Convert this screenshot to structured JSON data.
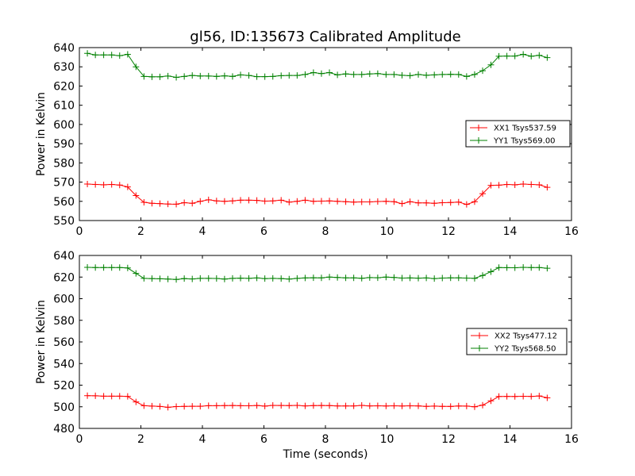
{
  "title": "gl56, ID:135673 Calibrated Amplitude",
  "chart_data": [
    {
      "type": "line",
      "ylabel": "Power in Kelvin",
      "xlabel": "",
      "xlim": [
        0,
        16
      ],
      "ylim": [
        550,
        640
      ],
      "xticks": [
        0,
        2,
        4,
        6,
        8,
        10,
        12,
        14,
        16
      ],
      "yticks": [
        550,
        560,
        570,
        580,
        590,
        600,
        610,
        620,
        630,
        640
      ],
      "legend_position": "center-right",
      "series": [
        {
          "name": "XX1 Tsys537.59",
          "color": "#ff0000",
          "x": [
            0.26,
            0.52,
            0.79,
            1.05,
            1.31,
            1.57,
            1.84,
            2.1,
            2.36,
            2.62,
            2.88,
            3.15,
            3.41,
            3.67,
            3.93,
            4.2,
            4.46,
            4.72,
            4.98,
            5.24,
            5.51,
            5.77,
            6.03,
            6.29,
            6.56,
            6.82,
            7.08,
            7.34,
            7.61,
            7.87,
            8.13,
            8.39,
            8.66,
            8.92,
            9.18,
            9.44,
            9.7,
            9.97,
            10.23,
            10.49,
            10.75,
            11.02,
            11.28,
            11.54,
            11.8,
            12.07,
            12.33,
            12.59,
            12.85,
            13.11,
            13.38,
            13.64,
            13.9,
            14.16,
            14.43,
            14.69,
            14.95,
            15.21
          ],
          "y": [
            569,
            568.8,
            568.6,
            568.8,
            568.5,
            567.5,
            563,
            559.5,
            559,
            558.8,
            558.6,
            558.5,
            559.3,
            559,
            560,
            560.8,
            560.2,
            560,
            560.2,
            560.6,
            560.6,
            560.5,
            560.1,
            560.2,
            560.6,
            559.6,
            560,
            560.6,
            560,
            560.1,
            560.2,
            560,
            559.8,
            559.6,
            559.7,
            559.7,
            559.9,
            560,
            559.8,
            558.8,
            559.8,
            559.2,
            559.2,
            559,
            559.3,
            559.4,
            559.6,
            558.4,
            559.8,
            564,
            568.3,
            568.4,
            568.8,
            568.6,
            569,
            568.8,
            568.6,
            567.3
          ]
        },
        {
          "name": "YY1 Tsys569.00",
          "color": "#008000",
          "x": [
            0.26,
            0.52,
            0.79,
            1.05,
            1.31,
            1.57,
            1.84,
            2.1,
            2.36,
            2.62,
            2.88,
            3.15,
            3.41,
            3.67,
            3.93,
            4.2,
            4.46,
            4.72,
            4.98,
            5.24,
            5.51,
            5.77,
            6.03,
            6.29,
            6.56,
            6.82,
            7.08,
            7.34,
            7.61,
            7.87,
            8.13,
            8.39,
            8.66,
            8.92,
            9.18,
            9.44,
            9.7,
            9.97,
            10.23,
            10.49,
            10.75,
            11.02,
            11.28,
            11.54,
            11.8,
            12.07,
            12.33,
            12.59,
            12.85,
            13.11,
            13.38,
            13.64,
            13.9,
            14.16,
            14.43,
            14.69,
            14.95,
            15.21
          ],
          "y": [
            637,
            636.2,
            636.2,
            636.2,
            635.8,
            636.5,
            630,
            625,
            624.8,
            624.8,
            625.2,
            624.5,
            625,
            625.5,
            625.2,
            625.2,
            625,
            625.3,
            625,
            625.8,
            625.5,
            624.9,
            624.9,
            625,
            625.4,
            625.5,
            625.5,
            626,
            627,
            626.5,
            627,
            625.8,
            626.3,
            626,
            626,
            626.3,
            626.5,
            626,
            626,
            625.6,
            625.4,
            626,
            625.6,
            625.8,
            626,
            626.1,
            626,
            625,
            626,
            628,
            631,
            635.5,
            635.6,
            635.6,
            636.5,
            635.5,
            636,
            634.8
          ]
        }
      ]
    },
    {
      "type": "line",
      "ylabel": "Power in Kelvin",
      "xlabel": "Time (seconds)",
      "xlim": [
        0,
        16
      ],
      "ylim": [
        480,
        640
      ],
      "xticks": [
        0,
        2,
        4,
        6,
        8,
        10,
        12,
        14,
        16
      ],
      "yticks": [
        480,
        500,
        520,
        540,
        560,
        580,
        600,
        620,
        640
      ],
      "legend_position": "center-right",
      "series": [
        {
          "name": "XX2 Tsys477.12",
          "color": "#ff0000",
          "x": [
            0.26,
            0.52,
            0.79,
            1.05,
            1.31,
            1.57,
            1.84,
            2.1,
            2.36,
            2.62,
            2.88,
            3.15,
            3.41,
            3.67,
            3.93,
            4.2,
            4.46,
            4.72,
            4.98,
            5.24,
            5.51,
            5.77,
            6.03,
            6.29,
            6.56,
            6.82,
            7.08,
            7.34,
            7.61,
            7.87,
            8.13,
            8.39,
            8.66,
            8.92,
            9.18,
            9.44,
            9.7,
            9.97,
            10.23,
            10.49,
            10.75,
            11.02,
            11.28,
            11.54,
            11.8,
            12.07,
            12.33,
            12.59,
            12.85,
            13.11,
            13.38,
            13.64,
            13.9,
            14.16,
            14.43,
            14.69,
            14.95,
            15.21
          ],
          "y": [
            510.3,
            510.2,
            509.8,
            509.8,
            509.8,
            509.6,
            504.5,
            501,
            500.6,
            500.3,
            499.5,
            500.2,
            500.4,
            500.5,
            500.5,
            501,
            501,
            501.1,
            501.2,
            501,
            500.9,
            501.2,
            500.6,
            501.3,
            501.2,
            501.1,
            501.3,
            500.8,
            501.1,
            501.2,
            501.1,
            500.8,
            500.8,
            500.8,
            501.3,
            500.8,
            500.9,
            500.7,
            500.9,
            500.7,
            500.9,
            500.8,
            500.4,
            500.6,
            500.4,
            500.3,
            500.7,
            500.6,
            500,
            501.5,
            505.5,
            509.5,
            509.6,
            509.5,
            509.7,
            509.6,
            510,
            508.3
          ]
        },
        {
          "name": "YY2 Tsys568.50",
          "color": "#008000",
          "x": [
            0.26,
            0.52,
            0.79,
            1.05,
            1.31,
            1.57,
            1.84,
            2.1,
            2.36,
            2.62,
            2.88,
            3.15,
            3.41,
            3.67,
            3.93,
            4.2,
            4.46,
            4.72,
            4.98,
            5.24,
            5.51,
            5.77,
            6.03,
            6.29,
            6.56,
            6.82,
            7.08,
            7.34,
            7.61,
            7.87,
            8.13,
            8.39,
            8.66,
            8.92,
            9.18,
            9.44,
            9.7,
            9.97,
            10.23,
            10.49,
            10.75,
            11.02,
            11.28,
            11.54,
            11.8,
            12.07,
            12.33,
            12.59,
            12.85,
            13.11,
            13.38,
            13.64,
            13.9,
            14.16,
            14.43,
            14.69,
            14.95,
            15.21
          ],
          "y": [
            629,
            628.8,
            628.8,
            628.8,
            628.8,
            628.4,
            623.4,
            618.8,
            618.6,
            618.4,
            618.2,
            617.8,
            618.6,
            618.3,
            618.8,
            618.8,
            618.7,
            618.2,
            618.8,
            619,
            618.8,
            619.2,
            618.6,
            618.8,
            618.6,
            618.2,
            618.8,
            619.2,
            619.4,
            619.3,
            620,
            619.6,
            619.3,
            619.3,
            618.9,
            619.5,
            619.4,
            620,
            619.6,
            619.1,
            619.2,
            619,
            619.2,
            618.6,
            619.1,
            619.3,
            619.3,
            619.1,
            618.8,
            621.5,
            625,
            628.8,
            628.7,
            628.6,
            629,
            628.8,
            628.8,
            628.2
          ]
        }
      ]
    }
  ]
}
